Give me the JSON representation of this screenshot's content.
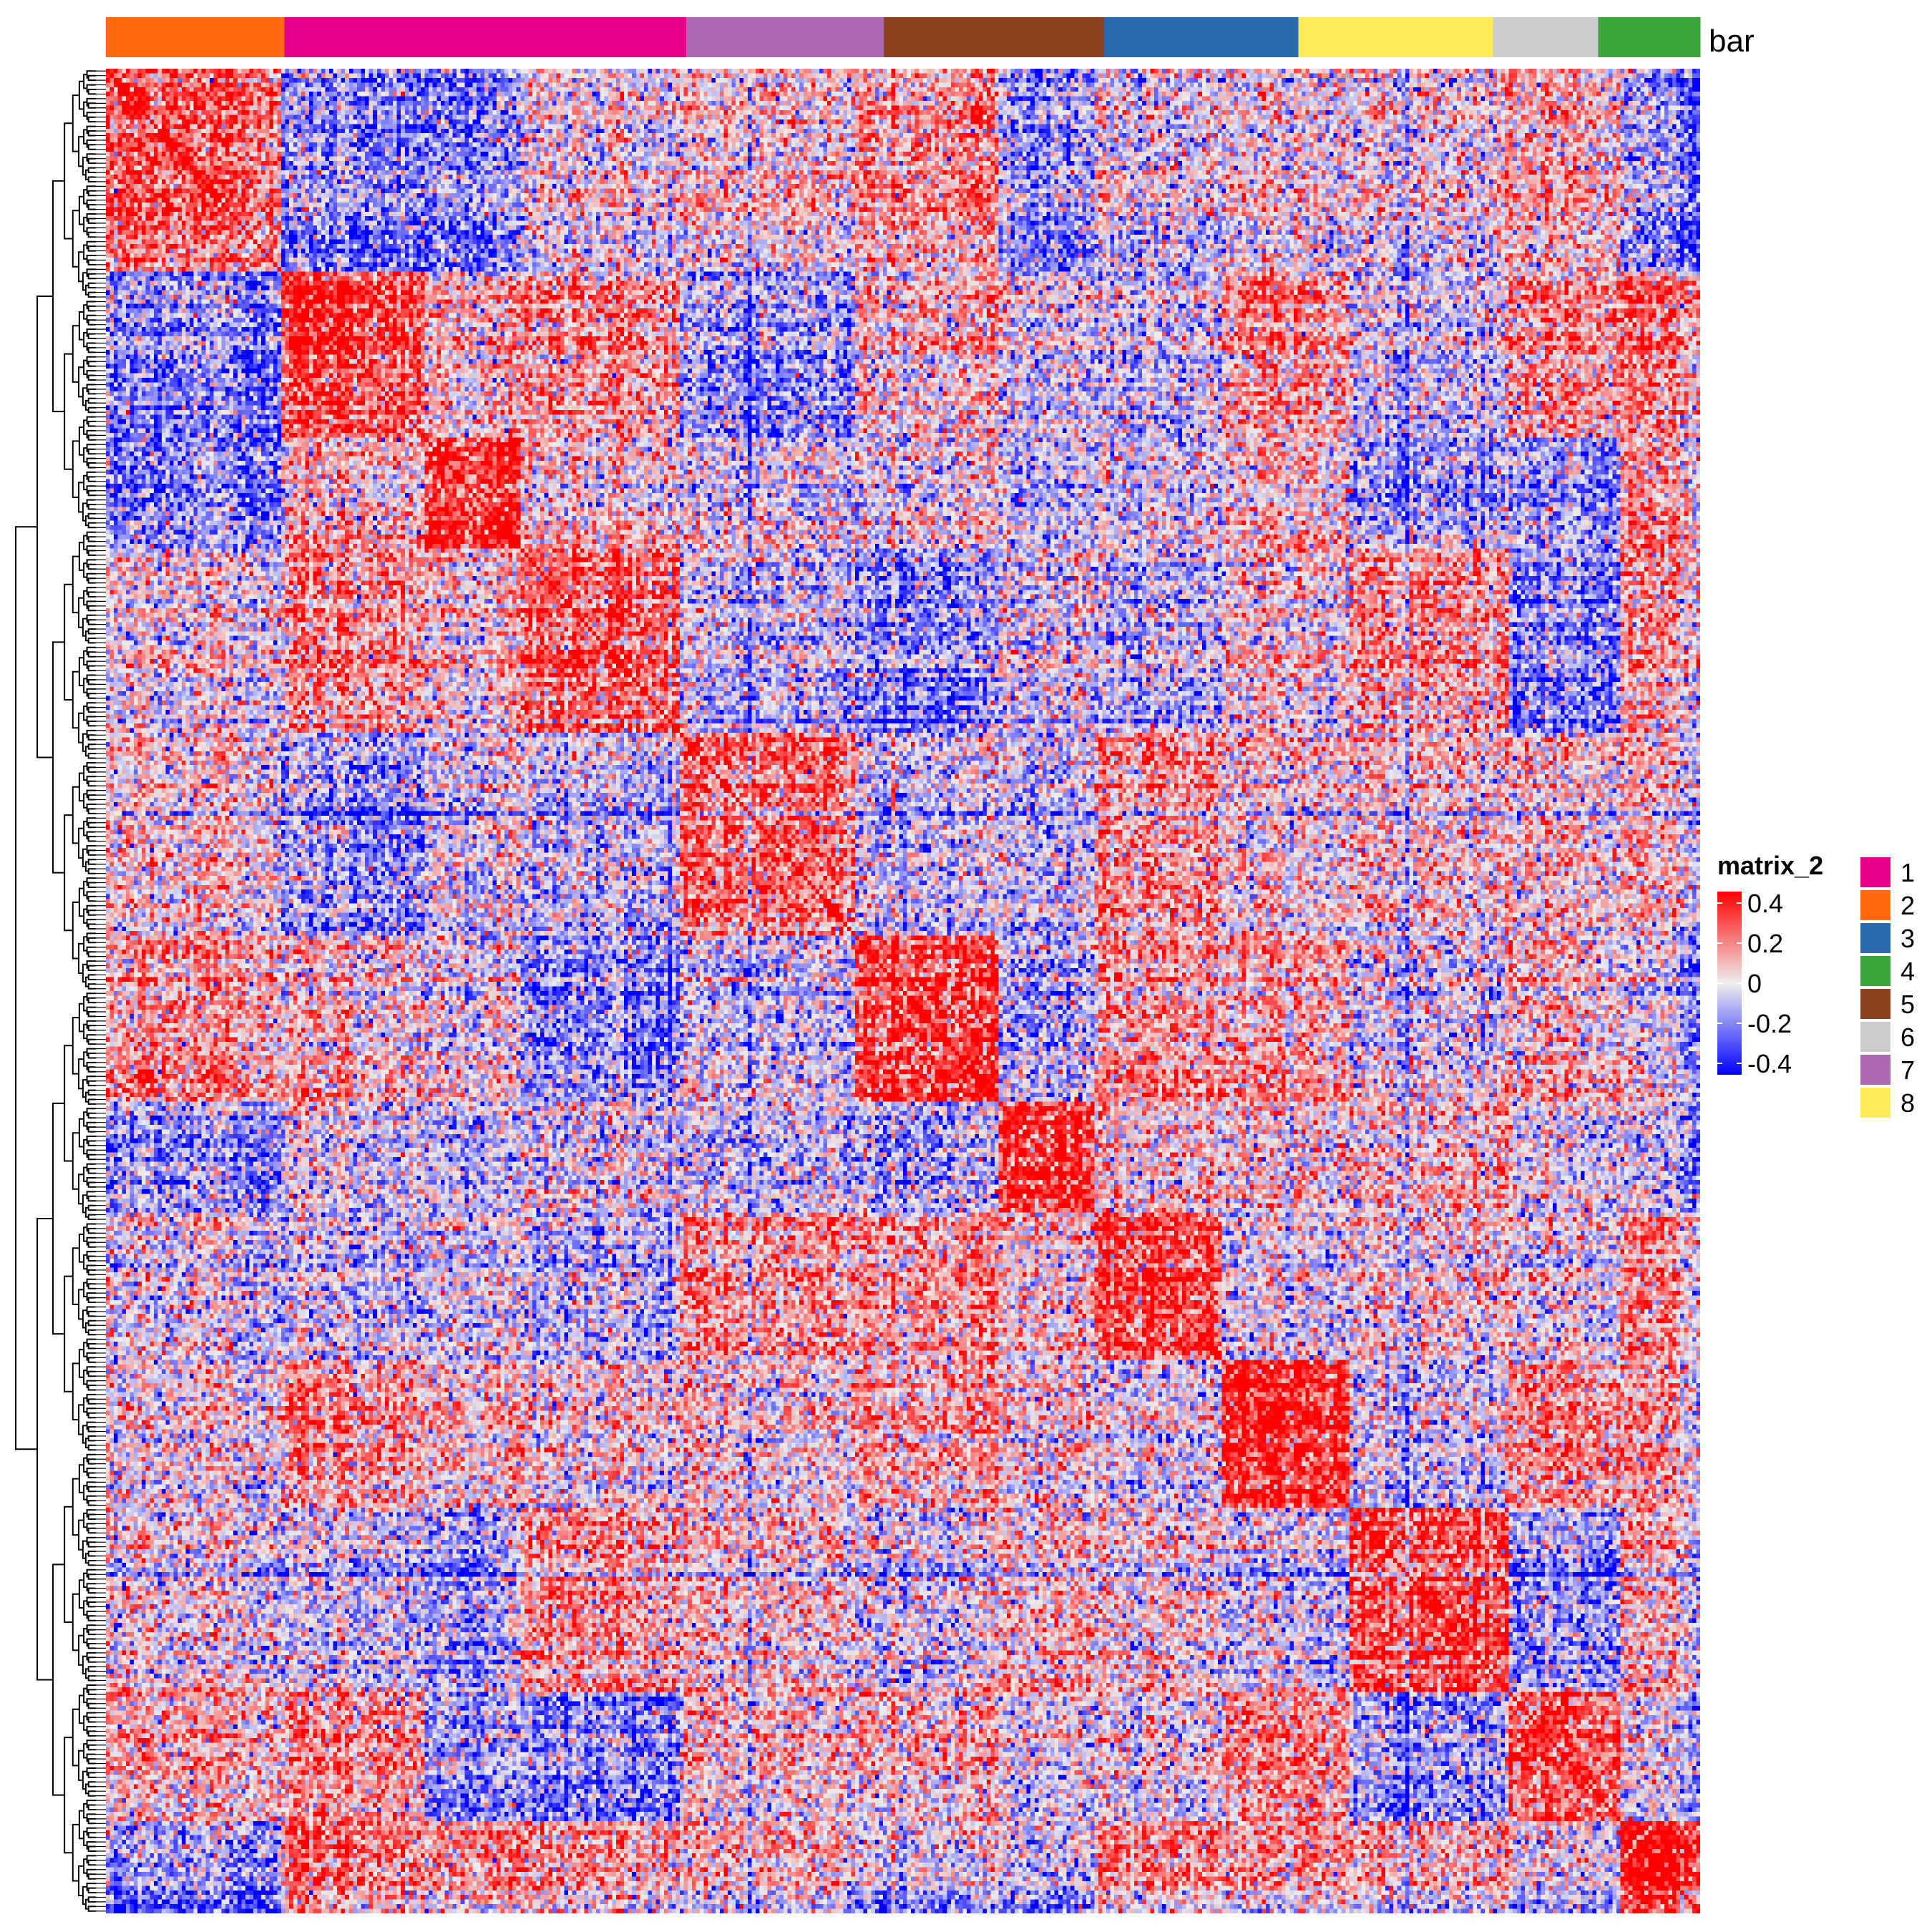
{
  "chart_data": {
    "type": "heatmap",
    "title": "",
    "xlabel": "",
    "ylabel": "",
    "annotation": {
      "name": "bar",
      "segments": [
        {
          "label": "2",
          "fraction": 0.112
        },
        {
          "label": "1",
          "fraction": 0.252
        },
        {
          "label": "7",
          "fraction": 0.124
        },
        {
          "label": "5",
          "fraction": 0.138
        },
        {
          "label": "3",
          "fraction": 0.122
        },
        {
          "label": "8",
          "fraction": 0.122
        },
        {
          "label": "6",
          "fraction": 0.066
        },
        {
          "label": "4",
          "fraction": 0.064
        }
      ]
    },
    "color_legend": {
      "title": "matrix_2",
      "ticks": [
        "0.4",
        "0.2",
        "0",
        "-0.2",
        "-0.4"
      ],
      "range": [
        -0.4,
        0.4
      ],
      "colors": {
        "low": "#0000FF",
        "mid": "#EEEEEE",
        "high": "#FF0000"
      }
    },
    "category_legend": [
      {
        "label": "1",
        "color": "#E7008A"
      },
      {
        "label": "2",
        "color": "#FF6A13"
      },
      {
        "label": "3",
        "color": "#2B6AAE"
      },
      {
        "label": "4",
        "color": "#3DA53D"
      },
      {
        "label": "5",
        "color": "#8D4120"
      },
      {
        "label": "6",
        "color": "#CCCCCC"
      },
      {
        "label": "7",
        "color": "#AD69B0"
      },
      {
        "label": "8",
        "color": "#FFEA58"
      }
    ],
    "matrix": {
      "rows": 400,
      "columns": 400,
      "diagonal_value": 1,
      "clusters": [
        {
          "start": 0.0,
          "end": 0.11,
          "mean": 0.25
        },
        {
          "start": 0.11,
          "end": 0.2,
          "mean": 0.3
        },
        {
          "start": 0.2,
          "end": 0.26,
          "mean": 0.35
        },
        {
          "start": 0.26,
          "end": 0.36,
          "mean": 0.25
        },
        {
          "start": 0.36,
          "end": 0.47,
          "mean": 0.2
        },
        {
          "start": 0.47,
          "end": 0.56,
          "mean": 0.3
        },
        {
          "start": 0.56,
          "end": 0.62,
          "mean": 0.32
        },
        {
          "start": 0.62,
          "end": 0.7,
          "mean": 0.3
        },
        {
          "start": 0.7,
          "end": 0.78,
          "mean": 0.33
        },
        {
          "start": 0.78,
          "end": 0.88,
          "mean": 0.3
        },
        {
          "start": 0.88,
          "end": 0.95,
          "mean": 0.28
        },
        {
          "start": 0.95,
          "end": 1.0,
          "mean": 0.35
        }
      ]
    }
  }
}
